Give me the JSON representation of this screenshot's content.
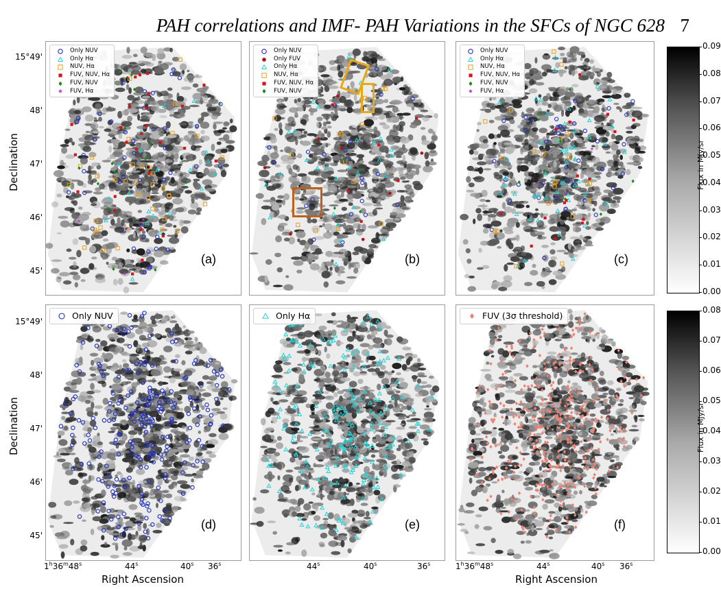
{
  "header": {
    "title": "PAH correlations and IMF- PAH Variations in the SFCs of NGC 628",
    "page_number": "7"
  },
  "axes": {
    "ylabel": "Declination",
    "xlabel": "Right Ascension",
    "dec_ticks": [
      "15°49'",
      "48'",
      "47'",
      "46'",
      "45'"
    ],
    "ra_ticks": [
      "1h36m48s",
      "44s",
      "40s",
      "36s"
    ]
  },
  "panels": [
    {
      "id": "a",
      "label": "(a)",
      "legend": [
        "Only NUV",
        "Only Hα",
        "NUV, Hα",
        "FUV, NUV, Hα",
        "FUV, NUV",
        "FUV, Hα"
      ]
    },
    {
      "id": "b",
      "label": "(b)",
      "legend": [
        "Only NUV",
        "Only FUV",
        "Only Hα",
        "NUV, Hα",
        "FUV, NUV, Hα",
        "FUV, NUV"
      ]
    },
    {
      "id": "c",
      "label": "(c)",
      "legend": [
        "Only NUV",
        "Only Hα",
        "NUV, Hα",
        "FUV, NUV, Hα",
        "FUV, NUV",
        "FUV, Hα"
      ]
    },
    {
      "id": "d",
      "label": "(d)",
      "legend": [
        "Only NUV"
      ]
    },
    {
      "id": "e",
      "label": "(e)",
      "legend": [
        "Only Hα"
      ]
    },
    {
      "id": "f",
      "label": "(f)",
      "legend": [
        "FUV (3σ threshold)"
      ]
    }
  ],
  "colorbars": [
    {
      "label": "Flux in MJy/sr",
      "ticks": [
        "0.09",
        "0.08",
        "0.07",
        "0.06",
        "0.05",
        "0.04",
        "0.03",
        "0.02",
        "0.01",
        "0.00"
      ]
    },
    {
      "label": "Flux in MJy/sr",
      "ticks": [
        "0.08",
        "0.07",
        "0.06",
        "0.05",
        "0.04",
        "0.03",
        "0.02",
        "0.01",
        "0.00"
      ]
    }
  ],
  "markers": {
    "Only NUV": {
      "shape": "circle-open",
      "color": "#1f2fbf"
    },
    "Only Hα": {
      "shape": "triangle-open",
      "color": "#22d3d6"
    },
    "NUV, Hα": {
      "shape": "square-open",
      "color": "#e8a020"
    },
    "FUV, NUV, Hα": {
      "shape": "square-filled",
      "color": "#d4141a"
    },
    "FUV, NUV": {
      "shape": "diamond-filled",
      "color": "#15891a"
    },
    "FUV, Hα": {
      "shape": "star",
      "color": "#b43dc4"
    },
    "Only FUV": {
      "shape": "circle-filled",
      "color": "#b01515"
    },
    "FUV (3σ threshold)": {
      "shape": "diamond-salmon",
      "color": "#f08070"
    }
  },
  "highlight_colors": {
    "yellow_box": "#e8a80f",
    "brown_box": "#c0601a"
  }
}
